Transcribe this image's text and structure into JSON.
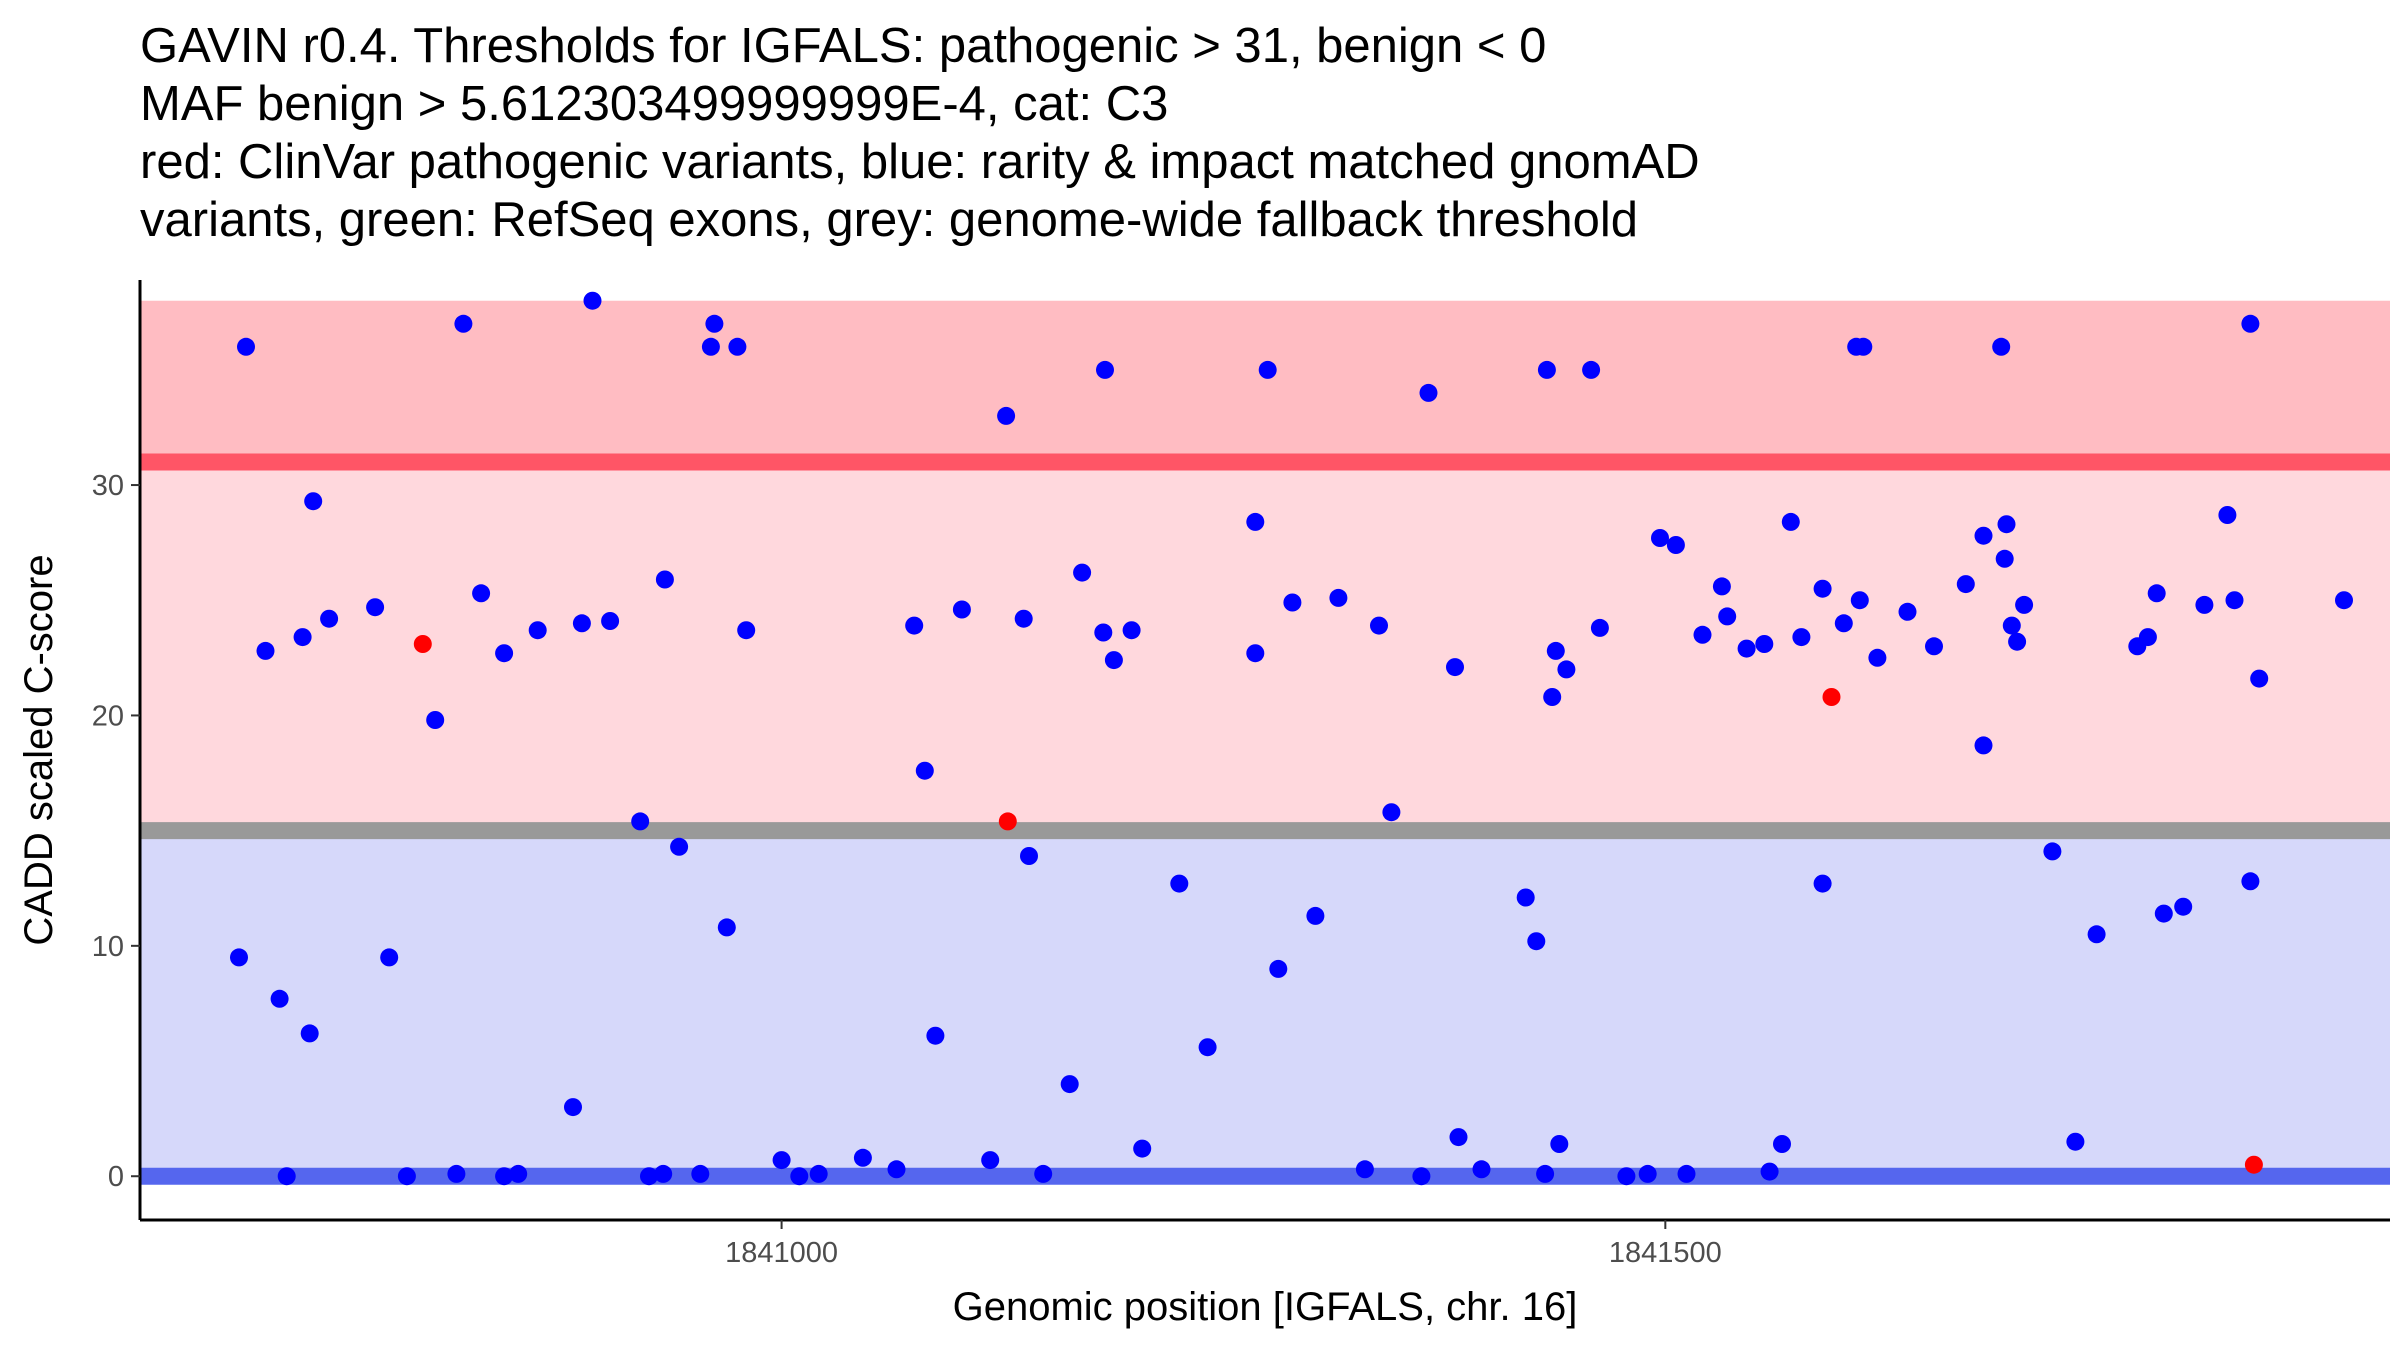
{
  "chart_data": {
    "type": "scatter",
    "title_lines": [
      "GAVIN r0.4. Thresholds for IGFALS: pathogenic > 31, benign < 0",
      "MAF benign > 5.612303499999999E-4, cat: C3",
      "red: ClinVar pathogenic variants, blue: rarity & impact matched gnomAD",
      "variants, green: RefSeq exons, grey: genome-wide fallback threshold"
    ],
    "xlabel": "Genomic position [IGFALS, chr. 16]",
    "ylabel": "CADD scaled C-score",
    "xlim": [
      1840637,
      1841910
    ],
    "ylim": [
      -1.9,
      38.9
    ],
    "x_ticks": [
      1841000,
      1841500
    ],
    "x_tick_labels": [
      "1841000",
      "1841500"
    ],
    "y_ticks": [
      0,
      10,
      20,
      30
    ],
    "y_tick_labels": [
      "0",
      "10",
      "20",
      "30"
    ],
    "bands": [
      {
        "name": "pathogenic-range-band",
        "y0": 31,
        "y1": 38,
        "color": "#FFBCC2"
      },
      {
        "name": "intermediate-range-band",
        "y0": 15,
        "y1": 31,
        "color": "#FFD8DD"
      },
      {
        "name": "benign-range-band",
        "y0": 0,
        "y1": 15,
        "color": "#D6D8FA"
      }
    ],
    "threshold_lines": [
      {
        "name": "pathogenic-threshold-line",
        "y": 31,
        "color": "#FF5566"
      },
      {
        "name": "fallback-threshold-line",
        "y": 15,
        "color": "#999999"
      },
      {
        "name": "benign-threshold-line",
        "y": 0,
        "color": "#5566EE"
      }
    ],
    "series": [
      {
        "name": "gnomAD",
        "color": "#0000FF",
        "points": [
          [
            1840697,
            36
          ],
          [
            1840693,
            9.5
          ],
          [
            1840708,
            22.8
          ],
          [
            1840716,
            7.7
          ],
          [
            1840720,
            0
          ],
          [
            1840729,
            23.4
          ],
          [
            1840733,
            6.2
          ],
          [
            1840744,
            24.2
          ],
          [
            1840735,
            29.3
          ],
          [
            1840770,
            24.7
          ],
          [
            1840778,
            9.5
          ],
          [
            1840788,
            0
          ],
          [
            1840804,
            19.8
          ],
          [
            1840816,
            0.1
          ],
          [
            1840820,
            37
          ],
          [
            1840830,
            25.3
          ],
          [
            1840843,
            22.7
          ],
          [
            1840843,
            0
          ],
          [
            1840851,
            0.1
          ],
          [
            1840862,
            23.7
          ],
          [
            1840882,
            3
          ],
          [
            1840887,
            24
          ],
          [
            1840893,
            38
          ],
          [
            1840903,
            24.1
          ],
          [
            1840920,
            15.4
          ],
          [
            1840925,
            0
          ],
          [
            1840933,
            0.1
          ],
          [
            1840934,
            25.9
          ],
          [
            1840942,
            14.3
          ],
          [
            1840954,
            0.1
          ],
          [
            1840962,
            37
          ],
          [
            1840960,
            36
          ],
          [
            1840975,
            36
          ],
          [
            1840969,
            10.8
          ],
          [
            1840980,
            23.7
          ],
          [
            1841000,
            0.7
          ],
          [
            1841010,
            0
          ],
          [
            1841021,
            0.1
          ],
          [
            1841046,
            0.8
          ],
          [
            1841065,
            0.3
          ],
          [
            1841075,
            23.9
          ],
          [
            1841081,
            17.6
          ],
          [
            1841087,
            6.1
          ],
          [
            1841102,
            24.6
          ],
          [
            1841118,
            0.7
          ],
          [
            1841127,
            33
          ],
          [
            1841137,
            24.2
          ],
          [
            1841140,
            13.9
          ],
          [
            1841148,
            0.1
          ],
          [
            1841163,
            4
          ],
          [
            1841170,
            26.2
          ],
          [
            1841182,
            23.6
          ],
          [
            1841183,
            35
          ],
          [
            1841188,
            22.4
          ],
          [
            1841198,
            23.7
          ],
          [
            1841204,
            1.2
          ],
          [
            1841225,
            12.7
          ],
          [
            1841241,
            5.6
          ],
          [
            1841268,
            22.7
          ],
          [
            1841268,
            28.4
          ],
          [
            1841275,
            35
          ],
          [
            1841281,
            9
          ],
          [
            1841289,
            24.9
          ],
          [
            1841302,
            11.3
          ],
          [
            1841315,
            25.1
          ],
          [
            1841330,
            0.3
          ],
          [
            1841338,
            23.9
          ],
          [
            1841345,
            15.8
          ],
          [
            1841362,
            0
          ],
          [
            1841366,
            34
          ],
          [
            1841381,
            22.1
          ],
          [
            1841383,
            1.7
          ],
          [
            1841396,
            0.3
          ],
          [
            1841421,
            12.1
          ],
          [
            1841427,
            10.2
          ],
          [
            1841433,
            35
          ],
          [
            1841432,
            0.1
          ],
          [
            1841436,
            20.8
          ],
          [
            1841438,
            22.8
          ],
          [
            1841440,
            1.4
          ],
          [
            1841444,
            22
          ],
          [
            1841458,
            35
          ],
          [
            1841463,
            23.8
          ],
          [
            1841478,
            0
          ],
          [
            1841490,
            0.1
          ],
          [
            1841497,
            27.7
          ],
          [
            1841506,
            27.4
          ],
          [
            1841512,
            0.1
          ],
          [
            1841521,
            23.5
          ],
          [
            1841532,
            25.6
          ],
          [
            1841535,
            24.3
          ],
          [
            1841546,
            22.9
          ],
          [
            1841556,
            23.1
          ],
          [
            1841559,
            0.2
          ],
          [
            1841566,
            1.4
          ],
          [
            1841571,
            28.4
          ],
          [
            1841577,
            23.4
          ],
          [
            1841589,
            12.7
          ],
          [
            1841589,
            25.5
          ],
          [
            1841601,
            24
          ],
          [
            1841608,
            36
          ],
          [
            1841612,
            36
          ],
          [
            1841610,
            25
          ],
          [
            1841620,
            22.5
          ],
          [
            1841637,
            24.5
          ],
          [
            1841652,
            23
          ],
          [
            1841670,
            25.7
          ],
          [
            1841680,
            27.8
          ],
          [
            1841680,
            18.7
          ],
          [
            1841690,
            36
          ],
          [
            1841692,
            26.8
          ],
          [
            1841693,
            28.3
          ],
          [
            1841696,
            23.9
          ],
          [
            1841699,
            23.2
          ],
          [
            1841703,
            24.8
          ],
          [
            1841719,
            14.1
          ],
          [
            1841732,
            1.5
          ],
          [
            1841744,
            10.5
          ],
          [
            1841767,
            23
          ],
          [
            1841773,
            23.4
          ],
          [
            1841778,
            25.3
          ],
          [
            1841782,
            11.4
          ],
          [
            1841793,
            11.7
          ],
          [
            1841805,
            24.8
          ],
          [
            1841818,
            28.7
          ],
          [
            1841822,
            25
          ],
          [
            1841831,
            37
          ],
          [
            1841831,
            12.8
          ],
          [
            1841836,
            21.6
          ],
          [
            1841884,
            25
          ]
        ]
      },
      {
        "name": "ClinVar pathogenic",
        "color": "#FF0000",
        "points": [
          [
            1840797,
            23.1
          ],
          [
            1841128,
            15.4
          ],
          [
            1841594,
            20.8
          ],
          [
            1841833,
            0.5
          ]
        ]
      }
    ]
  }
}
